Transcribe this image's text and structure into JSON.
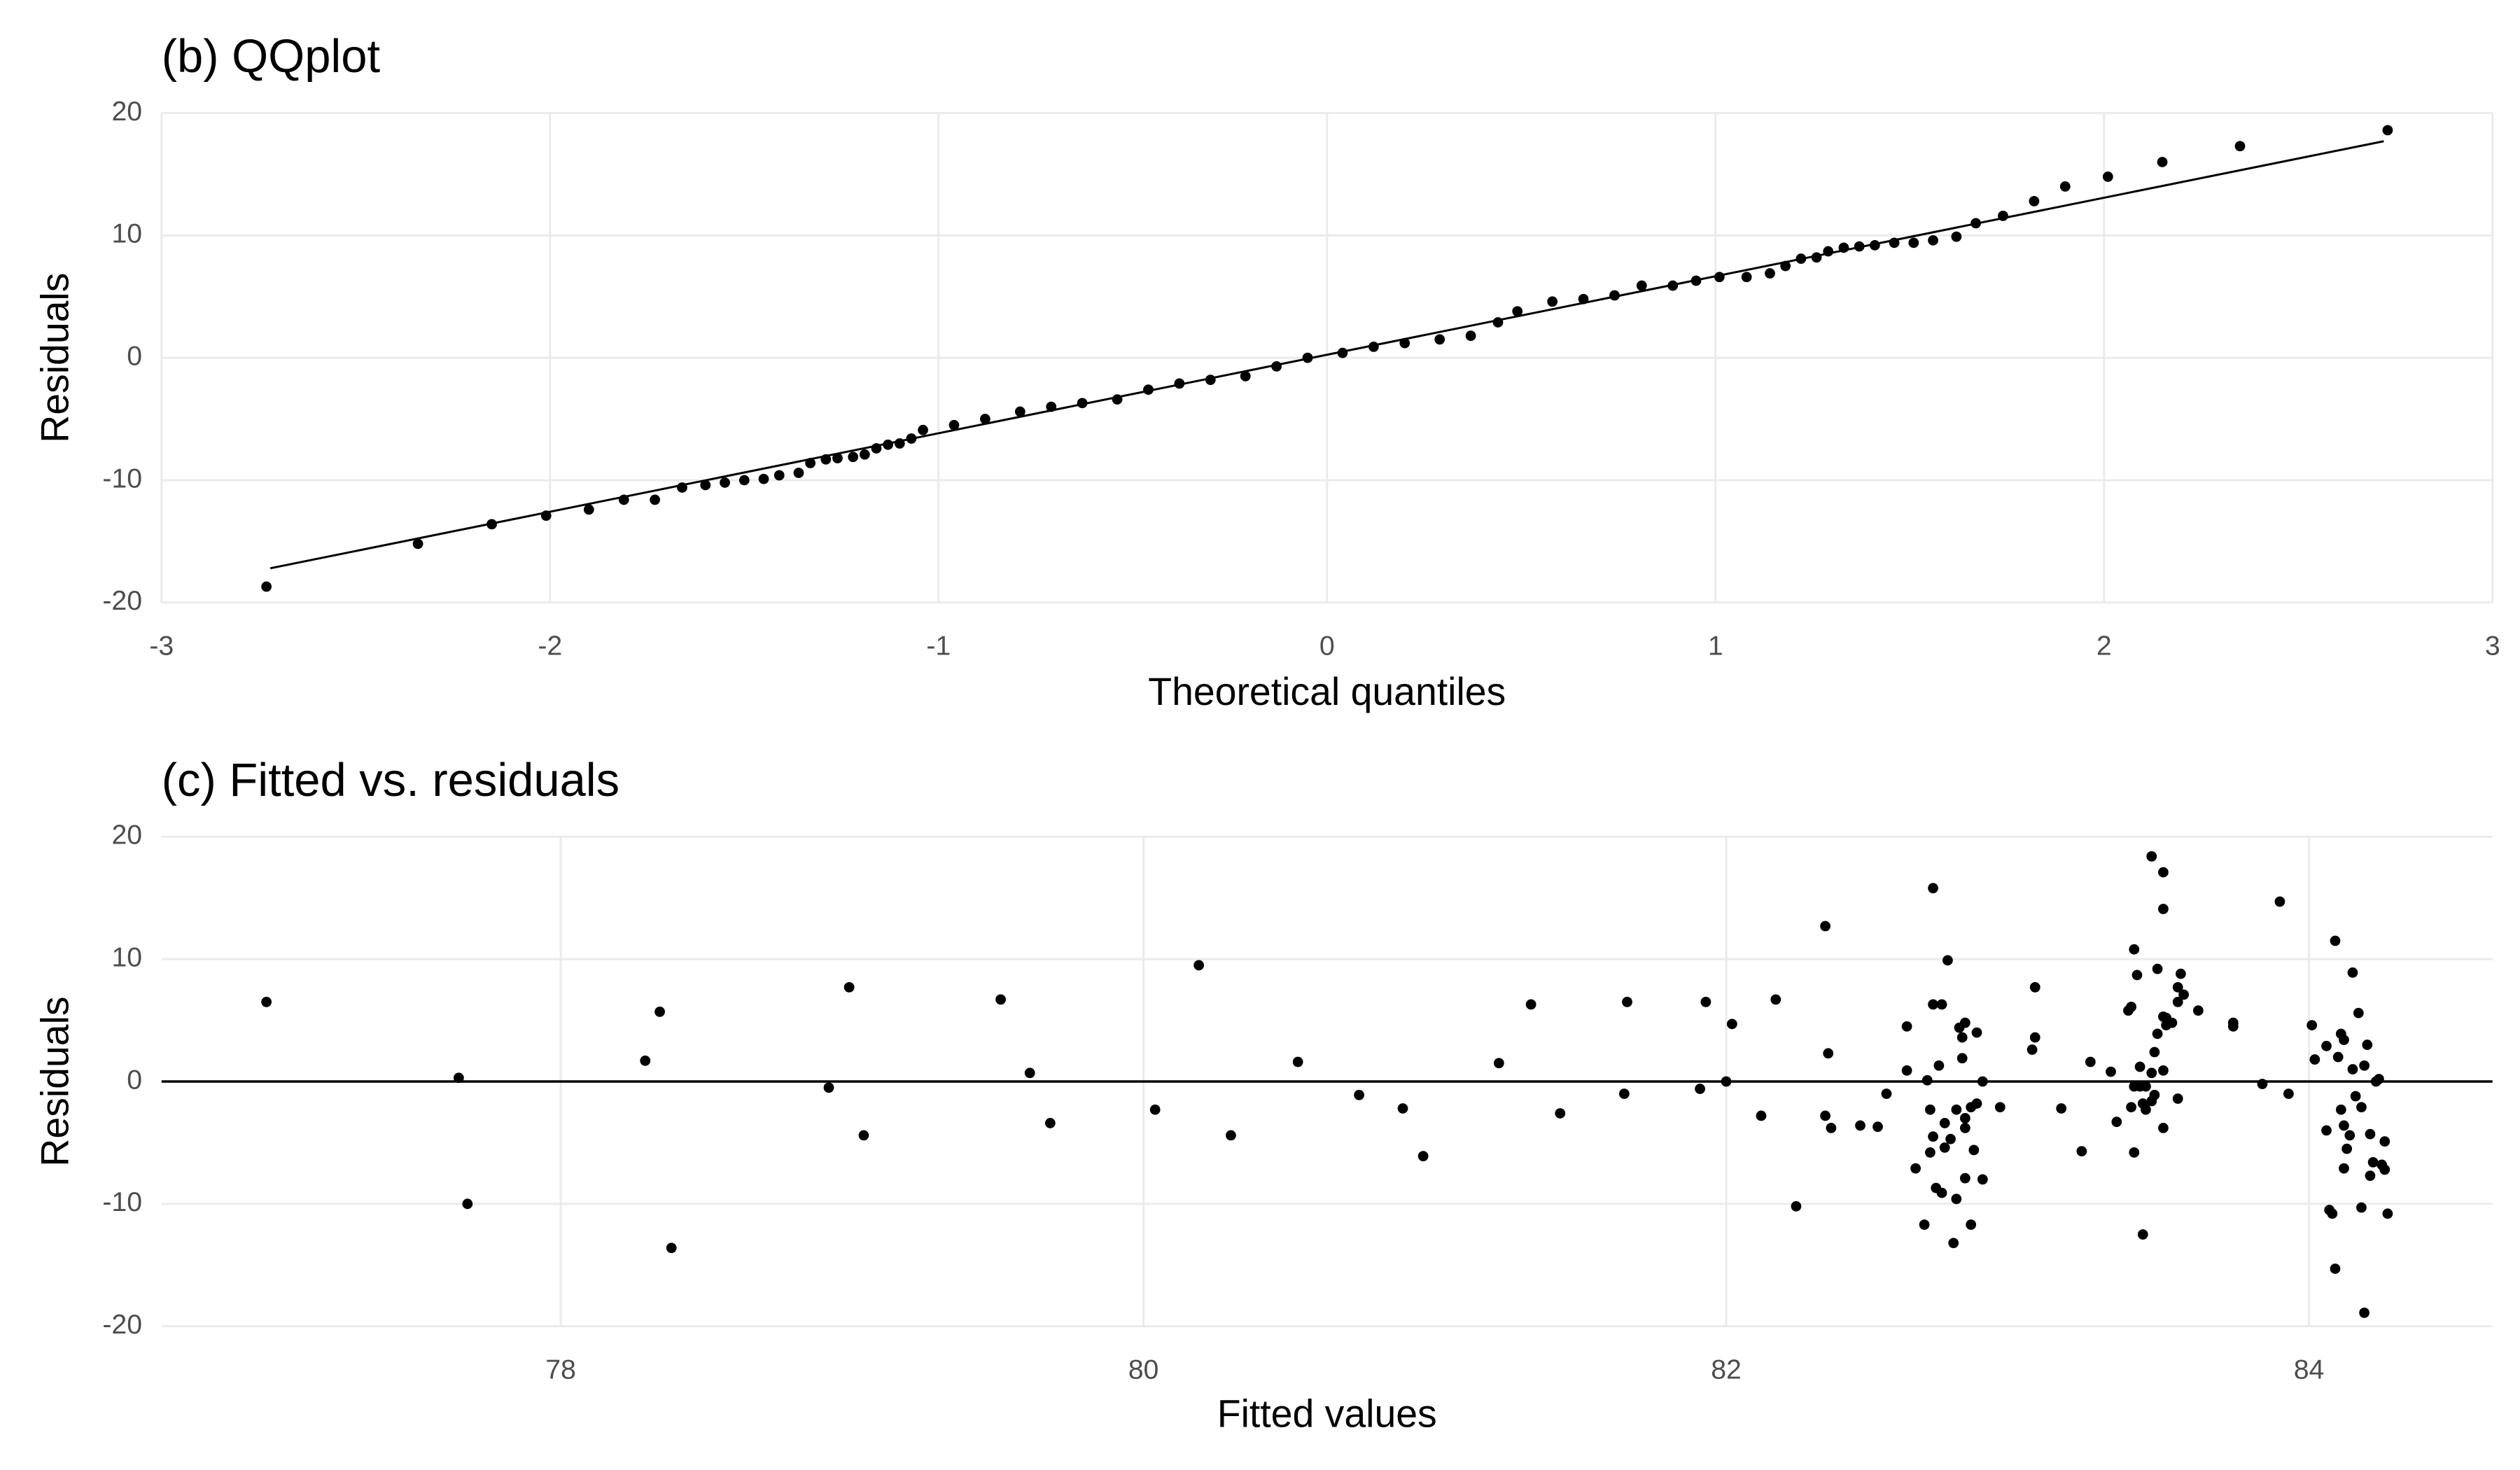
{
  "chart_data": [
    {
      "type": "scatter",
      "title": "(b) QQplot",
      "x_label": "Theoretical quantiles",
      "y_label": "Residuals",
      "xlim": [
        -3,
        3
      ],
      "ylim": [
        -20,
        20
      ],
      "xticks": [
        -3,
        -2,
        -1,
        0,
        1,
        2,
        3
      ],
      "yticks": [
        -20,
        -10,
        0,
        10,
        20
      ],
      "grid": true,
      "color": "#000000",
      "reference_line": {
        "x": [
          -2.72,
          2.72
        ],
        "y": [
          -17.2,
          17.7
        ]
      },
      "x": [
        -2.73,
        -2.34,
        -2.15,
        -2.01,
        -1.9,
        -1.81,
        -1.73,
        -1.66,
        -1.6,
        -1.55,
        -1.5,
        -1.45,
        -1.41,
        -1.36,
        -1.33,
        -1.29,
        -1.26,
        -1.22,
        -1.19,
        -1.16,
        -1.13,
        -1.1,
        -1.07,
        -1.04,
        -0.96,
        -0.88,
        -0.79,
        -0.71,
        -0.63,
        -0.54,
        -0.46,
        -0.38,
        -0.3,
        -0.21,
        -0.13,
        -0.05,
        0.04,
        0.12,
        0.2,
        0.29,
        0.37,
        0.44,
        0.49,
        0.58,
        0.66,
        0.74,
        0.81,
        0.89,
        0.95,
        1.01,
        1.08,
        1.14,
        1.18,
        1.22,
        1.26,
        1.29,
        1.33,
        1.37,
        1.41,
        1.46,
        1.51,
        1.56,
        1.62,
        1.67,
        1.74,
        1.82,
        1.9,
        2.01,
        2.15,
        2.35,
        2.73
      ],
      "values": [
        -18.7,
        -15.2,
        -13.6,
        -12.9,
        -12.4,
        -11.6,
        -11.6,
        -10.6,
        -10.4,
        -10.2,
        -10.0,
        -9.9,
        -9.6,
        -9.4,
        -8.6,
        -8.3,
        -8.2,
        -8.1,
        -7.9,
        -7.4,
        -7.1,
        -7.0,
        -6.6,
        -5.9,
        -5.5,
        -5.0,
        -4.4,
        -4.0,
        -3.7,
        -3.4,
        -2.6,
        -2.1,
        -1.8,
        -1.5,
        -0.7,
        0.0,
        0.4,
        0.9,
        1.2,
        1.5,
        1.8,
        2.9,
        3.8,
        4.6,
        4.8,
        5.1,
        5.9,
        5.9,
        6.3,
        6.6,
        6.6,
        6.9,
        7.5,
        8.1,
        8.2,
        8.7,
        9.0,
        9.1,
        9.2,
        9.4,
        9.4,
        9.6,
        9.9,
        11.0,
        11.6,
        12.8,
        14.0,
        14.8,
        16.0,
        17.3,
        18.6
      ]
    },
    {
      "type": "scatter",
      "title": "(c) Fitted vs. residuals",
      "x_label": "Fitted values",
      "y_label": "Residuals",
      "xlim": [
        76.63,
        84.63
      ],
      "ylim": [
        -20,
        20
      ],
      "xticks": [
        78,
        80,
        82,
        84
      ],
      "yticks": [
        -20,
        -10,
        0,
        10,
        20
      ],
      "grid": true,
      "color": "#000000",
      "hline": 0,
      "x": [
        76.99,
        77.65,
        77.68,
        78.29,
        78.34,
        78.38,
        78.92,
        78.99,
        79.04,
        79.51,
        79.61,
        79.68,
        80.04,
        80.19,
        80.3,
        80.53,
        80.74,
        80.89,
        80.96,
        81.22,
        81.33,
        81.43,
        81.65,
        81.66,
        81.91,
        81.93,
        82.0,
        82.02,
        82.12,
        82.17,
        82.24,
        82.34,
        82.34,
        82.35,
        82.36,
        82.46,
        82.52,
        82.55,
        82.62,
        82.62,
        82.65,
        82.68,
        82.69,
        82.7,
        82.7,
        82.71,
        82.71,
        82.71,
        82.72,
        82.73,
        82.74,
        82.75,
        82.74,
        82.75,
        82.76,
        82.77,
        82.78,
        82.79,
        82.79,
        82.8,
        82.81,
        82.81,
        82.82,
        82.82,
        82.82,
        82.82,
        82.84,
        82.84,
        82.85,
        82.86,
        82.86,
        82.88,
        82.88,
        82.94,
        83.05,
        83.06,
        83.06,
        83.15,
        83.22,
        83.25,
        83.32,
        83.34,
        83.38,
        83.39,
        83.39,
        83.4,
        83.4,
        83.4,
        83.41,
        83.42,
        83.42,
        83.43,
        83.43,
        83.44,
        83.44,
        83.46,
        83.46,
        83.46,
        83.47,
        83.47,
        83.48,
        83.48,
        83.5,
        83.5,
        83.5,
        83.5,
        83.5,
        83.51,
        83.51,
        83.53,
        83.55,
        83.55,
        83.55,
        83.56,
        83.57,
        83.62,
        83.74,
        83.74,
        83.84,
        83.9,
        83.93,
        84.01,
        84.02,
        84.06,
        84.06,
        84.07,
        84.08,
        84.09,
        84.09,
        84.1,
        84.11,
        84.11,
        84.12,
        84.12,
        84.12,
        84.13,
        84.14,
        84.15,
        84.15,
        84.16,
        84.17,
        84.18,
        84.18,
        84.19,
        84.19,
        84.2,
        84.21,
        84.21,
        84.22,
        84.23,
        84.24,
        84.25,
        84.26,
        84.26,
        84.27
      ],
      "values": [
        6.5,
        0.3,
        -10.0,
        1.7,
        5.7,
        -13.6,
        -0.5,
        7.7,
        -4.4,
        6.7,
        0.7,
        -3.4,
        -2.3,
        9.5,
        -4.4,
        1.6,
        -1.1,
        -2.2,
        -6.1,
        1.5,
        6.3,
        -2.6,
        -1.0,
        6.5,
        -0.6,
        6.5,
        0.0,
        4.7,
        -2.8,
        6.7,
        -10.2,
        -2.8,
        12.7,
        2.3,
        -3.8,
        -3.6,
        -3.7,
        -1.0,
        4.5,
        0.9,
        -7.1,
        -11.7,
        0.1,
        -2.3,
        -5.8,
        6.3,
        15.8,
        -4.5,
        -8.7,
        1.3,
        6.3,
        -3.4,
        -9.1,
        -5.4,
        9.9,
        -4.7,
        -13.2,
        -2.3,
        -9.6,
        4.4,
        3.6,
        1.9,
        -3.0,
        -3.8,
        -7.9,
        4.8,
        -2.1,
        -11.7,
        -5.6,
        -1.8,
        4.0,
        0.0,
        -8.0,
        -2.1,
        2.6,
        3.6,
        7.7,
        -2.2,
        -5.7,
        1.6,
        0.8,
        -3.3,
        5.8,
        -2.1,
        6.1,
        10.8,
        -0.4,
        -5.8,
        8.7,
        -0.4,
        1.2,
        -12.5,
        -1.8,
        -0.4,
        -2.3,
        0.7,
        18.4,
        -1.6,
        2.4,
        -1.1,
        3.9,
        9.2,
        5.3,
        17.1,
        14.1,
        0.9,
        -3.8,
        4.6,
        5.2,
        4.8,
        -1.4,
        6.5,
        7.7,
        8.8,
        7.1,
        5.8,
        4.8,
        4.5,
        -0.2,
        14.7,
        -1.0,
        4.6,
        1.8,
        2.9,
        -4.0,
        -10.5,
        -10.8,
        -15.3,
        11.5,
        2.0,
        -2.3,
        3.9,
        -7.1,
        3.4,
        -3.6,
        -5.5,
        -4.4,
        1.0,
        8.9,
        -1.2,
        5.6,
        -2.1,
        -10.3,
        1.3,
        -18.9,
        3.0,
        -4.3,
        -7.7,
        -6.6,
        0.0,
        0.2,
        -6.8,
        -7.2,
        -4.9,
        -10.8
      ]
    }
  ]
}
